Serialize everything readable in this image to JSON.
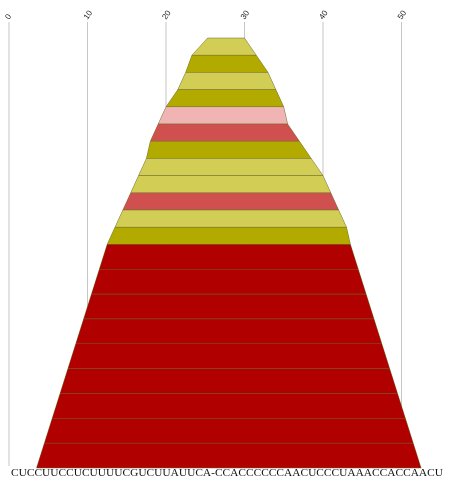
{
  "chart_data": {
    "type": "area",
    "title": "",
    "xlabel": "",
    "ylabel": "",
    "x_ticks": [
      0,
      10,
      20,
      30,
      40,
      50
    ],
    "xlim": [
      0,
      55
    ],
    "grid": true,
    "sequence": "CUCCUUCCUCUUUUCGUCUUAUUCA-CCACCCCCCAACUCCCUAAACCACCAACU",
    "colors": {
      "dark_red": "#b00000",
      "mid_red": "#d05050",
      "pink": "#f0b4b4",
      "olive": "#b3aa00",
      "yellow": "#d2cd55"
    },
    "blocks": [
      {
        "start": 25.3,
        "end": 30.0,
        "color": "yellow"
      },
      {
        "start": 23.3,
        "end": 31.5,
        "color": "olive"
      },
      {
        "start": 22.5,
        "end": 33.0,
        "color": "yellow"
      },
      {
        "start": 21.5,
        "end": 34.0,
        "color": "olive"
      },
      {
        "start": 20.0,
        "end": 35.0,
        "color": "pink"
      },
      {
        "start": 19.0,
        "end": 35.5,
        "color": "mid_red"
      },
      {
        "start": 18.0,
        "end": 37.0,
        "color": "olive"
      },
      {
        "start": 17.5,
        "end": 38.5,
        "color": "yellow"
      },
      {
        "start": 16.5,
        "end": 40.0,
        "color": "yellow"
      },
      {
        "start": 15.5,
        "end": 41.0,
        "color": "mid_red"
      },
      {
        "start": 14.5,
        "end": 42.0,
        "color": "yellow"
      },
      {
        "start": 13.5,
        "end": 43.0,
        "color": "olive"
      },
      {
        "start": 12.5,
        "end": 43.5,
        "color": "dark_red"
      },
      {
        "start": 11.5,
        "end": 44.5,
        "color": "dark_red"
      },
      {
        "start": 10.5,
        "end": 45.5,
        "color": "dark_red"
      },
      {
        "start": 9.5,
        "end": 46.5,
        "color": "dark_red"
      },
      {
        "start": 8.5,
        "end": 47.5,
        "color": "dark_red"
      },
      {
        "start": 7.5,
        "end": 48.5,
        "color": "dark_red"
      },
      {
        "start": 6.5,
        "end": 49.5,
        "color": "dark_red"
      },
      {
        "start": 5.5,
        "end": 50.5,
        "color": "dark_red"
      },
      {
        "start": 4.5,
        "end": 51.5,
        "color": "dark_red"
      }
    ]
  }
}
